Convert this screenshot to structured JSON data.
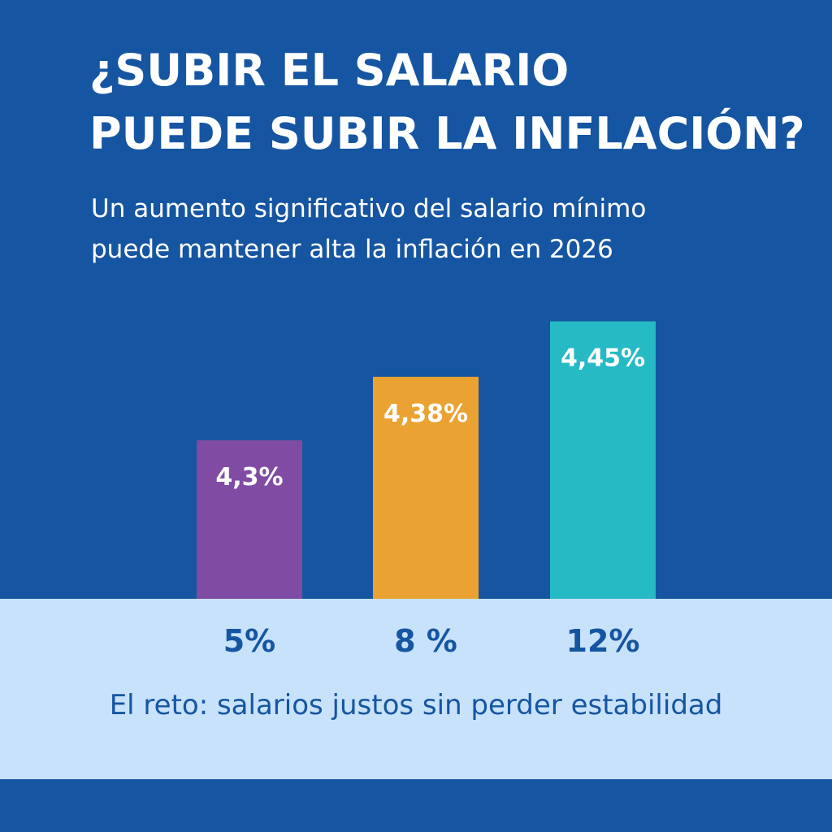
{
  "title_lines": [
    "¿SUBIR EL SALARIO",
    "PUEDE SUBIR LA INFLACIÓN?"
  ],
  "subtitle_lines": [
    "Un aumento significativo del salario mínimo",
    "puede mantener alta la inflación en 2026"
  ],
  "footer": "El reto: salarios justos sin perder estabilidad",
  "colors": {
    "background": "#1655a1",
    "panel": "#c8e2fb",
    "text_light": "#ffffff",
    "text_dark": "#1655a1"
  },
  "chart_data": {
    "type": "bar",
    "title": "¿SUBIR EL SALARIO PUEDE SUBIR LA INFLACIÓN?",
    "xlabel": "",
    "ylabel": "",
    "categories": [
      "5%",
      "8 %",
      "12%"
    ],
    "values": [
      4.3,
      4.38,
      4.45
    ],
    "value_labels": [
      "4,3%",
      "4,38%",
      "4,45%"
    ],
    "bar_colors": [
      "#7f4ba3",
      "#eaa232",
      "#26bac4"
    ],
    "ylim": [
      4.1,
      4.47
    ],
    "grid": false,
    "legend": "none"
  }
}
